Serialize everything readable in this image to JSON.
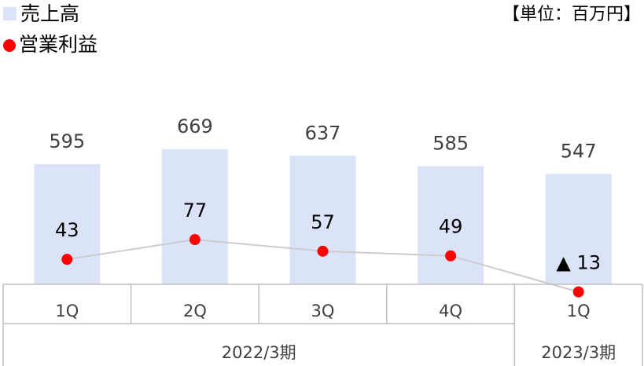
{
  "chart_data": {
    "type": "bar",
    "unit_label": "【単位：百万円】",
    "categories": [
      "1Q",
      "2Q",
      "3Q",
      "4Q",
      "1Q"
    ],
    "groups": [
      {
        "label": "2022/3期",
        "span": 4
      },
      {
        "label": "2023/3期",
        "span": 1
      }
    ],
    "series": [
      {
        "name": "売上高",
        "type": "bar",
        "color": "#dae3f8",
        "values": [
          595,
          669,
          637,
          585,
          547
        ]
      },
      {
        "name": "営業利益",
        "type": "line",
        "color": "#ff0000",
        "line_color": "#cccccc",
        "values": [
          43,
          77,
          57,
          49,
          -13
        ],
        "value_labels": [
          "43",
          "77",
          "57",
          "49",
          "▲ 13"
        ]
      }
    ]
  }
}
